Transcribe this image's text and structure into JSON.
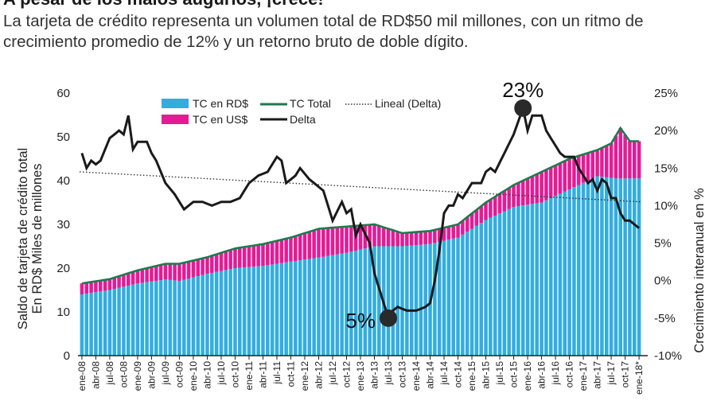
{
  "header": {
    "headline": "A pesar de los malos augurios, ¡crece!",
    "subtitle": "La tarjeta de crédito representa un volumen total de RD$50 mil millones, con un ritmo de crecimiento promedio de 12% y un retorno bruto de doble dígito."
  },
  "chart_data": {
    "type": "bar+line",
    "y_left_label": [
      "Saldo de tarjeta de crédito total",
      "En RD$ Miles de millones"
    ],
    "y_right_label": "Crecimiento interanual en %",
    "y_left_ticks": [
      "0",
      "10",
      "20",
      "30",
      "40",
      "50",
      "60"
    ],
    "y_right_ticks": [
      "-10%",
      "-5%",
      "0%",
      "5%",
      "10%",
      "15%",
      "20%",
      "25%"
    ],
    "ylim_left": [
      0,
      60
    ],
    "ylim_right": [
      -10,
      25
    ],
    "x_tick_labels": [
      "ene-08",
      "abr-08",
      "jul-08",
      "oct-08",
      "ene-09",
      "abr-09",
      "jul-09",
      "oct-09",
      "ene-10",
      "abr-10",
      "jul-10",
      "oct-10",
      "ene-11",
      "abr-11",
      "jul-11",
      "oct-11",
      "ene-12",
      "abr-12",
      "jul-12",
      "oct-12",
      "ene-13",
      "abr-13",
      "jul-13",
      "oct-13",
      "ene-14",
      "abr-14",
      "jul-14",
      "oct-14",
      "ene-15",
      "abr-15",
      "jul-15",
      "oct-15",
      "ene-16",
      "abr-16",
      "jul-16",
      "oct-16",
      "ene-17",
      "abr-17",
      "jul-17",
      "oct-17",
      "ene-18*"
    ],
    "legend": {
      "rd": "TC en RD$",
      "us": "TC en US$",
      "total": "TC Total",
      "lineal": "Lineal (Delta)",
      "delta": "Delta"
    },
    "colors": {
      "rd": "#33ade0",
      "us": "#e41b95",
      "total": "#1e7a4e",
      "delta": "#1a1a1a",
      "lineal": "#333333"
    },
    "trend": {
      "start": 14.5,
      "end": 10.5
    },
    "annotations": [
      {
        "label": "23%",
        "index": 95,
        "value": 23
      },
      {
        "label": "5%",
        "index": 66,
        "value": -5
      }
    ],
    "anchors": {
      "rd": [
        [
          0,
          14
        ],
        [
          6,
          15
        ],
        [
          12,
          16.5
        ],
        [
          18,
          17.4
        ],
        [
          21,
          17.1
        ],
        [
          27,
          18.7
        ],
        [
          33,
          20
        ],
        [
          39,
          20.5
        ],
        [
          45,
          21.5
        ],
        [
          51,
          22.4
        ],
        [
          57,
          23.5
        ],
        [
          63,
          25
        ],
        [
          69,
          25
        ],
        [
          75,
          25.5
        ],
        [
          81,
          27
        ],
        [
          87,
          31
        ],
        [
          93,
          34
        ],
        [
          99,
          35
        ],
        [
          105,
          38
        ],
        [
          111,
          41
        ],
        [
          115,
          40.5
        ],
        [
          118,
          40.5
        ],
        [
          120,
          40.5
        ]
      ],
      "total": [
        [
          0,
          16.5
        ],
        [
          6,
          17.5
        ],
        [
          12,
          19.5
        ],
        [
          18,
          21
        ],
        [
          21,
          21
        ],
        [
          27,
          22.5
        ],
        [
          33,
          24.5
        ],
        [
          39,
          25.5
        ],
        [
          45,
          27
        ],
        [
          51,
          29
        ],
        [
          57,
          29.5
        ],
        [
          63,
          30
        ],
        [
          69,
          28
        ],
        [
          75,
          28.5
        ],
        [
          81,
          30
        ],
        [
          87,
          35
        ],
        [
          93,
          39
        ],
        [
          99,
          42
        ],
        [
          105,
          45
        ],
        [
          111,
          47
        ],
        [
          114,
          48.5
        ],
        [
          116,
          52
        ],
        [
          118,
          49
        ],
        [
          120,
          49
        ]
      ],
      "delta": [
        [
          0,
          17
        ],
        [
          1,
          15
        ],
        [
          2,
          16
        ],
        [
          3,
          15.5
        ],
        [
          4,
          16
        ],
        [
          6,
          19
        ],
        [
          8,
          20
        ],
        [
          9,
          19.5
        ],
        [
          10,
          22
        ],
        [
          11,
          17.5
        ],
        [
          12,
          18.5
        ],
        [
          14,
          18.5
        ],
        [
          15,
          17
        ],
        [
          16,
          16
        ],
        [
          18,
          13
        ],
        [
          20,
          11.5
        ],
        [
          22,
          9.5
        ],
        [
          24,
          10.5
        ],
        [
          26,
          10.5
        ],
        [
          28,
          10
        ],
        [
          30,
          10.5
        ],
        [
          32,
          10.5
        ],
        [
          34,
          11
        ],
        [
          36,
          13
        ],
        [
          38,
          14
        ],
        [
          40,
          14.5
        ],
        [
          42,
          16.5
        ],
        [
          43,
          16
        ],
        [
          44,
          13
        ],
        [
          45,
          13.5
        ],
        [
          46,
          14
        ],
        [
          47,
          15
        ],
        [
          49,
          13.5
        ],
        [
          50,
          13
        ],
        [
          52,
          12
        ],
        [
          54,
          8
        ],
        [
          56,
          10.5
        ],
        [
          57,
          9
        ],
        [
          58,
          9.5
        ],
        [
          59,
          6
        ],
        [
          60,
          7.5
        ],
        [
          62,
          5
        ],
        [
          63,
          1
        ],
        [
          64,
          -1
        ],
        [
          65,
          -3
        ],
        [
          66,
          -5
        ],
        [
          67,
          -4
        ],
        [
          68,
          -3.5
        ],
        [
          70,
          -4
        ],
        [
          72,
          -4
        ],
        [
          74,
          -3.5
        ],
        [
          75,
          -3
        ],
        [
          76,
          0
        ],
        [
          77,
          4
        ],
        [
          78,
          9
        ],
        [
          79,
          10
        ],
        [
          80,
          10
        ],
        [
          81,
          11.5
        ],
        [
          82,
          11
        ],
        [
          83,
          12
        ],
        [
          84,
          13
        ],
        [
          86,
          13
        ],
        [
          87,
          14.5
        ],
        [
          88,
          15
        ],
        [
          89,
          14.5
        ],
        [
          91,
          17
        ],
        [
          93,
          19.5
        ],
        [
          95,
          23
        ],
        [
          96,
          20
        ],
        [
          97,
          22
        ],
        [
          99,
          22
        ],
        [
          100,
          20
        ],
        [
          101,
          19
        ],
        [
          102,
          18
        ],
        [
          103,
          17
        ],
        [
          104,
          16.5
        ],
        [
          106,
          16.5
        ],
        [
          107,
          15
        ],
        [
          108,
          14
        ],
        [
          109,
          13
        ],
        [
          110,
          13.5
        ],
        [
          111,
          12
        ],
        [
          112,
          13.5
        ],
        [
          113,
          13
        ],
        [
          114,
          11
        ],
        [
          115,
          11
        ],
        [
          116,
          9
        ],
        [
          117,
          8
        ],
        [
          118,
          8
        ],
        [
          119,
          7.5
        ],
        [
          120,
          7
        ]
      ]
    }
  }
}
